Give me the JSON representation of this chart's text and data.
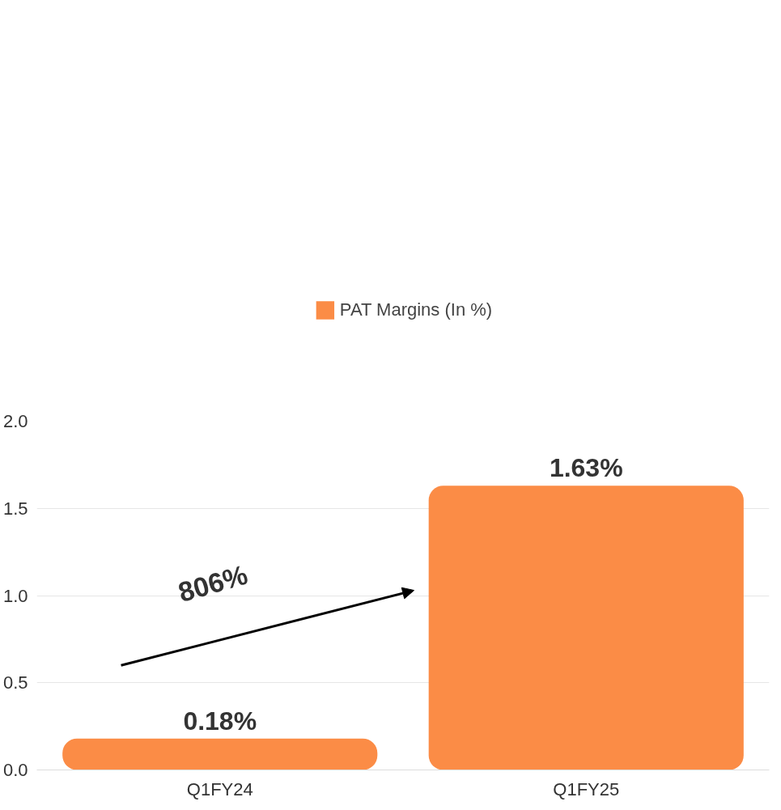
{
  "chart_data": {
    "type": "bar",
    "categories": [
      "Q1FY24",
      "Q1FY25"
    ],
    "series": [
      {
        "name": "PAT Margins (In %)",
        "color": "#fb8c46",
        "values": [
          0.18,
          1.63
        ],
        "value_labels": [
          "0.18%",
          "1.63%"
        ]
      }
    ],
    "ylim": [
      0,
      2
    ],
    "yticks": [
      {
        "value": 0,
        "label": "0.0"
      },
      0.5,
      {
        "value": 1,
        "label": "1.0"
      },
      1.5,
      {
        "value": 2,
        "label": "2.0"
      }
    ],
    "grid": "y",
    "legend": "top",
    "annotations": [
      "806%"
    ]
  }
}
